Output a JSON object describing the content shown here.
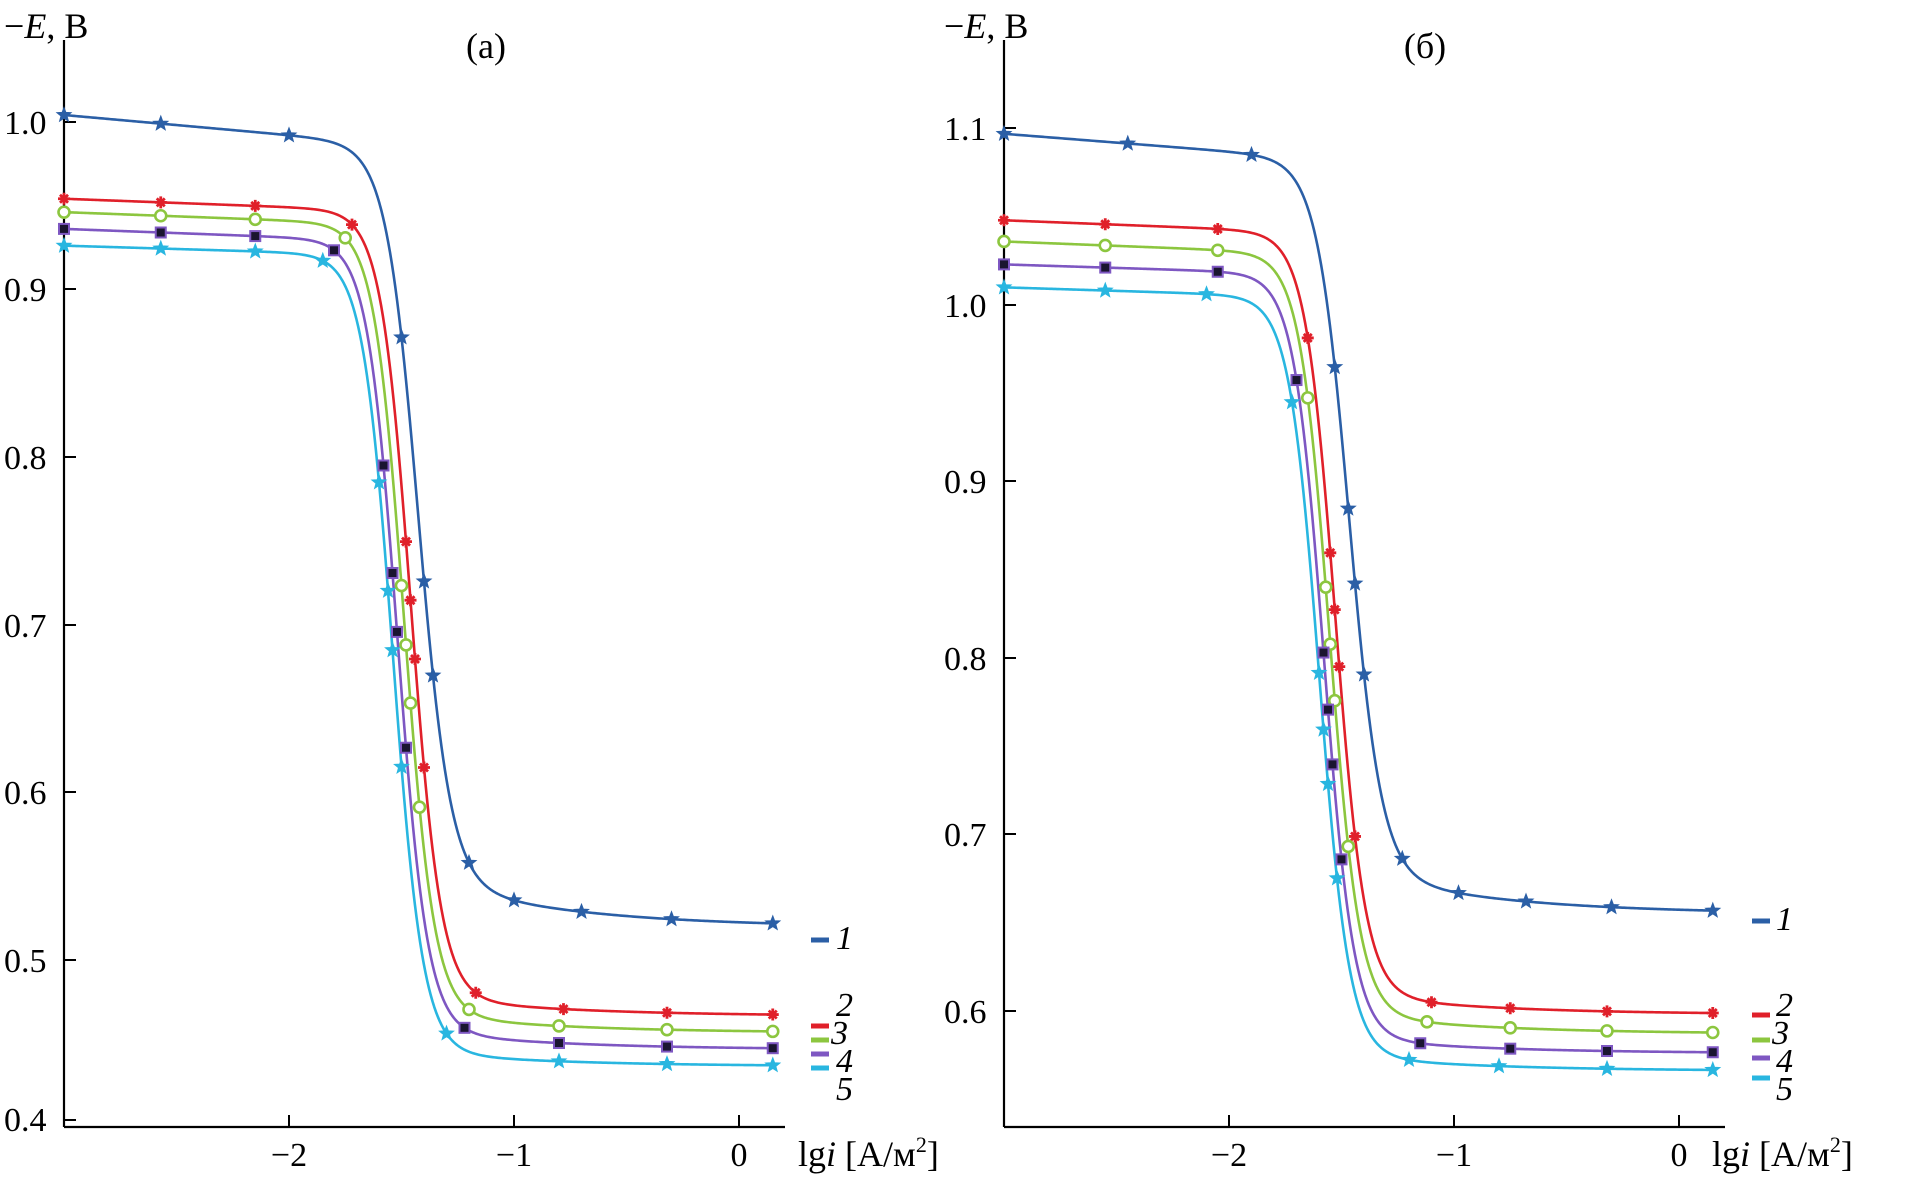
{
  "chart_data": [
    {
      "type": "line",
      "title": "(а)",
      "ylabel_prefix": "−",
      "ylabel_var": "E",
      "ylabel_unit": ", В",
      "xlabel_fn": "lg",
      "xlabel_var": "i",
      "xlabel_unit_pre": " [A/м",
      "xlabel_unit_sup": "2",
      "xlabel_unit_post": "]",
      "xlim": [
        -3.0,
        0.25
      ],
      "ylim": [
        0.4,
        1.03
      ],
      "xticks": [
        {
          "value": -2,
          "label": "−2"
        },
        {
          "value": -1,
          "label": "−1"
        },
        {
          "value": 0,
          "label": "0"
        }
      ],
      "yticks": [
        {
          "value": 0.4,
          "label": "0.4"
        },
        {
          "value": 0.5,
          "label": "0.5"
        },
        {
          "value": 0.6,
          "label": "0.6"
        },
        {
          "value": 0.7,
          "label": "0.7"
        },
        {
          "value": 0.8,
          "label": "0.8"
        },
        {
          "value": 0.9,
          "label": "0.9"
        },
        {
          "value": 1.0,
          "label": "1.0"
        }
      ],
      "series": [
        {
          "name": "1",
          "color": "#2b5fa6",
          "marker": "star",
          "x0": -1.43,
          "k": 14,
          "top": 1.0,
          "bottom": 0.515,
          "tail": 0.012,
          "marker_x": [
            -3.0,
            -2.57,
            -2.0,
            -1.5,
            -1.4,
            -1.36,
            -1.2,
            -1.0,
            -0.7,
            -0.3,
            0.15
          ]
        },
        {
          "name": "2",
          "color": "#e0202a",
          "marker": "plus",
          "x0": -1.46,
          "k": 15,
          "top": 0.95,
          "bottom": 0.462,
          "tail": 0.005,
          "marker_x": [
            -3.0,
            -2.57,
            -2.15,
            -1.72,
            -1.48,
            -1.46,
            -1.44,
            -1.4,
            -1.17,
            -0.78,
            -0.32,
            0.15
          ]
        },
        {
          "name": "3",
          "color": "#8cc63f",
          "marker": "circle",
          "x0": -1.49,
          "k": 15,
          "top": 0.942,
          "bottom": 0.452,
          "tail": 0.005,
          "marker_x": [
            -3.0,
            -2.57,
            -2.15,
            -1.75,
            -1.5,
            -1.48,
            -1.46,
            -1.42,
            -1.2,
            -0.8,
            -0.32,
            0.15
          ]
        },
        {
          "name": "4",
          "color": "#7e57c2",
          "marker": "square",
          "x0": -1.52,
          "k": 15,
          "top": 0.932,
          "bottom": 0.442,
          "tail": 0.005,
          "marker_x": [
            -3.0,
            -2.57,
            -2.15,
            -1.8,
            -1.58,
            -1.54,
            -1.52,
            -1.48,
            -1.22,
            -0.8,
            -0.32,
            0.15
          ]
        },
        {
          "name": "5",
          "color": "#29b6e0",
          "marker": "star",
          "x0": -1.54,
          "k": 15,
          "top": 0.922,
          "bottom": 0.432,
          "tail": 0.004,
          "marker_x": [
            -3.0,
            -2.57,
            -2.15,
            -1.85,
            -1.6,
            -1.56,
            -1.54,
            -1.5,
            -1.3,
            -0.8,
            -0.32,
            0.15
          ]
        }
      ]
    },
    {
      "type": "line",
      "title": "(б)",
      "ylabel_prefix": "−",
      "ylabel_var": "E",
      "ylabel_unit": ", В",
      "xlabel_fn": "lg",
      "xlabel_var": "i",
      "xlabel_unit_pre": " [A/м",
      "xlabel_unit_sup": "2",
      "xlabel_unit_post": "]",
      "xlim": [
        -3.0,
        0.25
      ],
      "ylim": [
        0.535,
        1.165
      ],
      "xticks": [
        {
          "value": -2,
          "label": "−2"
        },
        {
          "value": -1,
          "label": "−1"
        },
        {
          "value": 0,
          "label": "0"
        }
      ],
      "yticks": [
        {
          "value": 0.6,
          "label": "0.6"
        },
        {
          "value": 0.7,
          "label": "0.7"
        },
        {
          "value": 0.8,
          "label": "0.8"
        },
        {
          "value": 0.9,
          "label": "0.9"
        },
        {
          "value": 1.0,
          "label": "1.0"
        },
        {
          "value": 1.1,
          "label": "1.1"
        }
      ],
      "series": [
        {
          "name": "1",
          "color": "#2b5fa6",
          "marker": "star",
          "x0": -1.47,
          "k": 14,
          "top": 1.097,
          "bottom": 0.655,
          "tail": 0.01,
          "marker_x": [
            -3.0,
            -2.45,
            -1.9,
            -1.53,
            -1.47,
            -1.44,
            -1.4,
            -1.23,
            -0.98,
            -0.68,
            -0.3,
            0.15
          ]
        },
        {
          "name": "2",
          "color": "#e0202a",
          "marker": "plus",
          "x0": -1.53,
          "k": 15,
          "top": 1.048,
          "bottom": 0.598,
          "tail": 0.005,
          "marker_x": [
            -3.0,
            -2.55,
            -2.05,
            -1.65,
            -1.55,
            -1.53,
            -1.51,
            -1.44,
            -1.1,
            -0.75,
            -0.32,
            0.15
          ]
        },
        {
          "name": "3",
          "color": "#8cc63f",
          "marker": "circle",
          "x0": -1.555,
          "k": 15,
          "top": 1.036,
          "bottom": 0.587,
          "tail": 0.005,
          "marker_x": [
            -3.0,
            -2.55,
            -2.05,
            -1.65,
            -1.57,
            -1.55,
            -1.53,
            -1.47,
            -1.12,
            -0.75,
            -0.32,
            0.15
          ]
        },
        {
          "name": "4",
          "color": "#7e57c2",
          "marker": "square",
          "x0": -1.58,
          "k": 15,
          "top": 1.023,
          "bottom": 0.576,
          "tail": 0.004,
          "marker_x": [
            -3.0,
            -2.55,
            -2.05,
            -1.7,
            -1.58,
            -1.56,
            -1.54,
            -1.5,
            -1.15,
            -0.75,
            -0.32,
            0.15
          ]
        },
        {
          "name": "5",
          "color": "#29b6e0",
          "marker": "star",
          "x0": -1.6,
          "k": 15,
          "top": 1.01,
          "bottom": 0.566,
          "tail": 0.004,
          "marker_x": [
            -3.0,
            -2.55,
            -2.1,
            -1.72,
            -1.6,
            -1.58,
            -1.56,
            -1.52,
            -1.2,
            -0.8,
            -0.32,
            0.15
          ]
        }
      ]
    }
  ]
}
